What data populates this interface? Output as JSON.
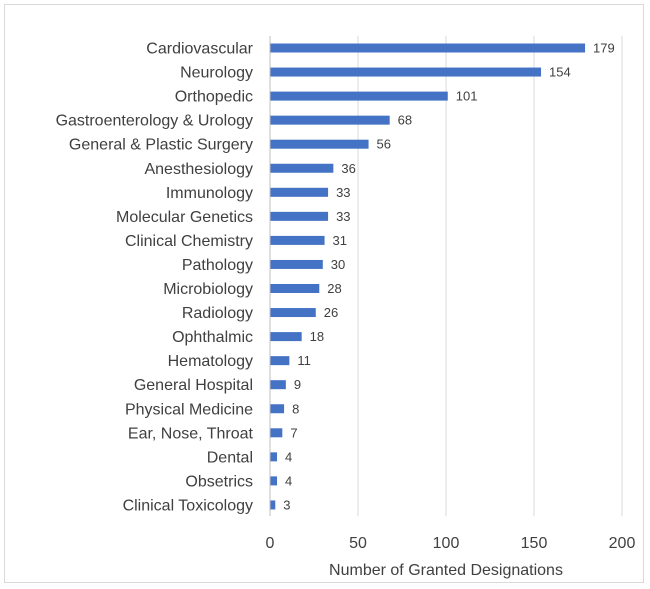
{
  "chart_data": {
    "type": "bar",
    "orientation": "horizontal",
    "title": "",
    "xlabel": "Number of Granted Designations",
    "ylabel": "",
    "xlim": [
      0,
      200
    ],
    "xticks": [
      0,
      50,
      100,
      150,
      200
    ],
    "grid": true,
    "bar_color": "#4472c4",
    "categories": [
      "Cardiovascular",
      "Neurology",
      "Orthopedic",
      "Gastroenterology & Urology",
      "General & Plastic Surgery",
      "Anesthesiology",
      "Immunology",
      "Molecular Genetics",
      "Clinical Chemistry",
      "Pathology",
      "Microbiology",
      "Radiology",
      "Ophthalmic",
      "Hematology",
      "General Hospital",
      "Physical Medicine",
      "Ear, Nose, Throat",
      "Dental",
      "Obsetrics",
      "Clinical Toxicology"
    ],
    "values": [
      179,
      154,
      101,
      68,
      56,
      36,
      33,
      33,
      31,
      30,
      28,
      26,
      18,
      11,
      9,
      8,
      7,
      4,
      4,
      3
    ]
  }
}
